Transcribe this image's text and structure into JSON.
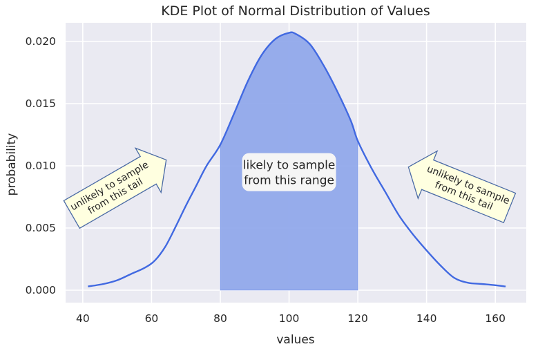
{
  "chart_data": {
    "type": "area",
    "title": "KDE Plot of Normal Distribution of Values",
    "xlabel": "values",
    "ylabel": "probability",
    "xlim": [
      35,
      169
    ],
    "ylim": [
      -0.001,
      0.0215
    ],
    "xticks": [
      40,
      60,
      80,
      100,
      120,
      140,
      160
    ],
    "yticks": [
      0.0,
      0.005,
      0.01,
      0.015,
      0.02
    ],
    "ytick_labels": [
      "0.000",
      "0.005",
      "0.010",
      "0.015",
      "0.020"
    ],
    "grid": true,
    "series": [
      {
        "x": [
          41.5,
          46,
          50,
          54,
          58,
          61,
          64,
          67,
          70,
          73,
          76,
          80,
          84,
          88,
          92,
          96,
          100,
          102,
          106,
          110,
          114,
          118,
          120,
          124,
          128,
          132,
          136,
          140,
          144,
          148,
          152,
          156,
          160,
          163
        ],
        "y": [
          0.0003,
          0.0005,
          0.0008,
          0.0013,
          0.0018,
          0.0024,
          0.0035,
          0.0051,
          0.0068,
          0.0084,
          0.01,
          0.0117,
          0.0142,
          0.0168,
          0.0189,
          0.0202,
          0.0207,
          0.0206,
          0.0198,
          0.0181,
          0.016,
          0.0136,
          0.012,
          0.0098,
          0.0079,
          0.006,
          0.0045,
          0.0032,
          0.002,
          0.001,
          0.0006,
          0.0005,
          0.0004,
          0.0003
        ]
      }
    ],
    "shaded_range": [
      80,
      120
    ],
    "colors": {
      "line": "#4169e1",
      "fill": "#8ea6ea",
      "background": "#eaeaf2",
      "grid": "#ffffff",
      "annotation_fill": "#ffffe0",
      "annotation_edge": "#4a6aa5"
    },
    "annotations": [
      {
        "text": "likely to sample\nfrom this range",
        "x": 100,
        "y": 0.0093,
        "style": "round-box"
      },
      {
        "text": "unlikely to sample\nfrom this tail",
        "x": 50,
        "y": 0.0082,
        "rotation": -30,
        "style": "rarrow"
      },
      {
        "text": "unlikely to sample\nfrom this tail",
        "x": 150,
        "y": 0.0082,
        "rotation": 22,
        "style": "larrow"
      }
    ]
  }
}
